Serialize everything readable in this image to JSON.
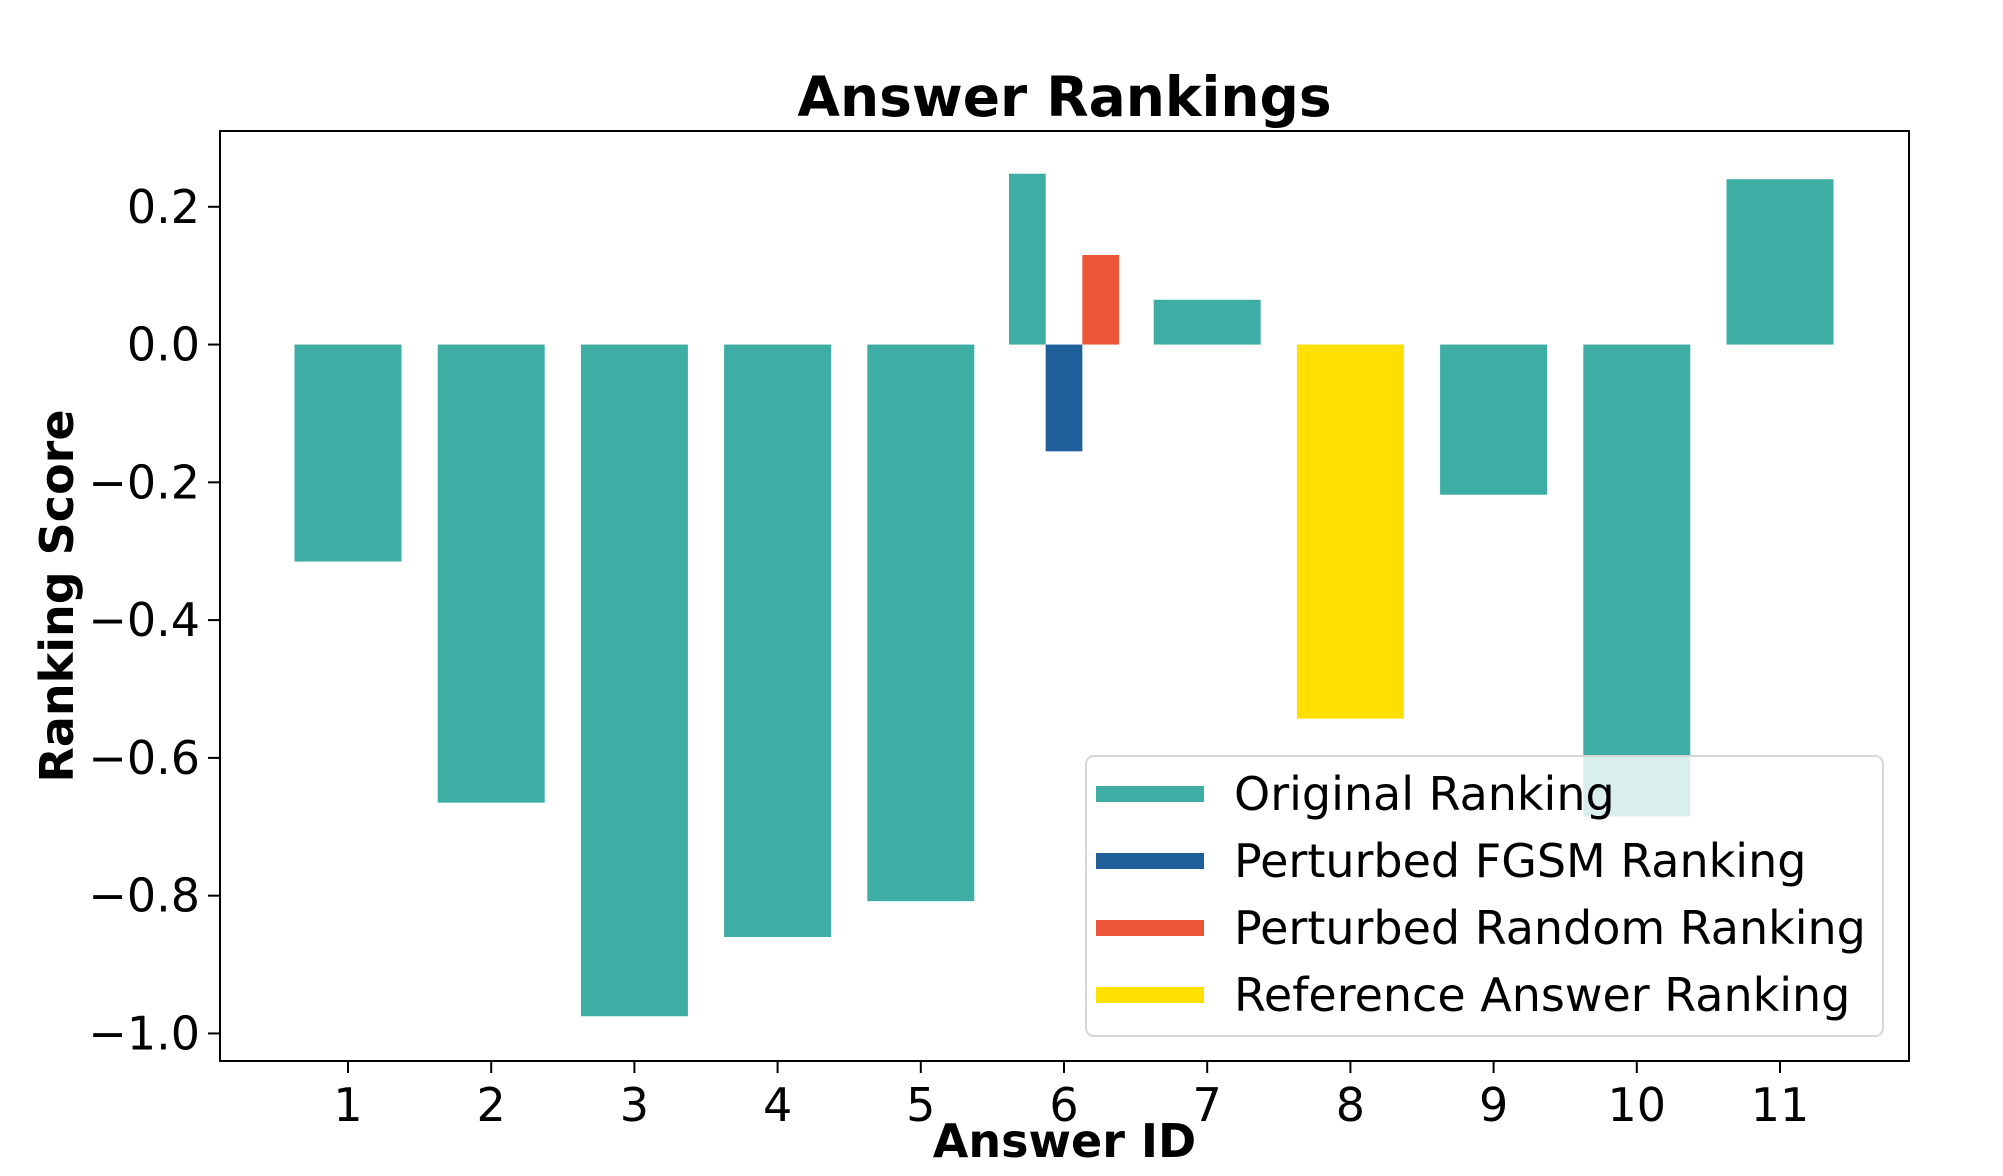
{
  "chart_data": {
    "type": "bar",
    "title": "Answer Rankings",
    "xlabel": "Answer ID",
    "ylabel": "Ranking Score",
    "categories": [
      "1",
      "2",
      "3",
      "4",
      "5",
      "6",
      "7",
      "8",
      "9",
      "10",
      "11"
    ],
    "ylim": [
      -1.04,
      0.31
    ],
    "yticks": [
      0.2,
      0.0,
      -0.2,
      -0.4,
      -0.6,
      -0.8,
      -1.0
    ],
    "ytick_labels": [
      "0.2",
      "0.0",
      "−0.2",
      "−0.4",
      "−0.6",
      "−0.8",
      "−1.0"
    ],
    "grid": false,
    "legend_position": "lower-right",
    "series": [
      {
        "name": "Original Ranking",
        "color": "#3eada4",
        "values": [
          -0.315,
          -0.665,
          -0.975,
          -0.86,
          -0.808,
          0.248,
          0.065,
          null,
          -0.218,
          -0.685,
          0.24
        ]
      },
      {
        "name": "Perturbed FGSM Ranking",
        "color": "#1f5f99",
        "values": [
          null,
          null,
          null,
          null,
          null,
          -0.155,
          null,
          null,
          null,
          null,
          null
        ]
      },
      {
        "name": "Perturbed Random Ranking",
        "color": "#ee563a",
        "values": [
          null,
          null,
          null,
          null,
          null,
          0.13,
          null,
          null,
          null,
          null,
          null
        ]
      },
      {
        "name": "Reference Answer Ranking",
        "color": "#ffe000",
        "values": [
          null,
          null,
          null,
          null,
          null,
          null,
          null,
          -0.543,
          null,
          null,
          null
        ]
      }
    ]
  }
}
